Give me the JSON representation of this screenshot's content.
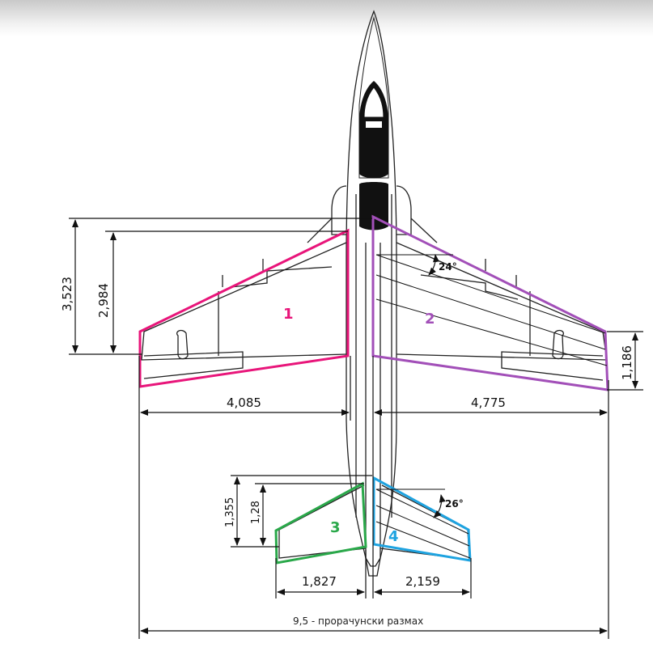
{
  "wing_labels": {
    "w1": "1",
    "w2": "2",
    "t3": "3",
    "t4": "4"
  },
  "dimensions": {
    "d3523": "3,523",
    "d2984": "2,984",
    "d4085": "4,085",
    "d4775": "4,775",
    "d1186": "1,186",
    "d1355": "1,355",
    "d128": "1,28",
    "d1827": "1,827",
    "d2159": "2,159",
    "span": "9,5 - прорачунски размах"
  },
  "angles": {
    "wing_sweep": "24°",
    "tail_sweep": "26°"
  },
  "colors": {
    "wing1": "#e8157a",
    "wing2": "#a24fb8",
    "tail3": "#2aa84a",
    "tail4": "#1ea3e0",
    "drawing": "#222222"
  }
}
